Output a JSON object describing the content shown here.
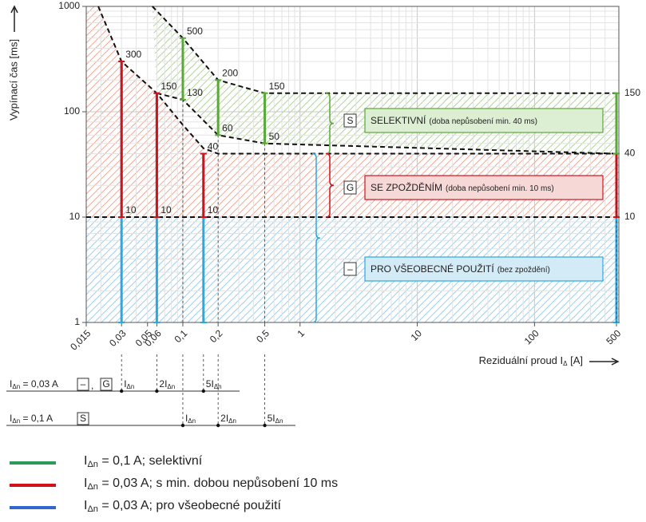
{
  "chart_data": {
    "type": "line",
    "ylabel": "Vypínací čas [ms]",
    "xlabel": {
      "text": "Reziduální proud I",
      "sub": "Δ",
      "unit": " [A]"
    },
    "xscale": "log",
    "yscale": "log",
    "xlim": [
      0.015,
      500
    ],
    "ylim": [
      1,
      1000
    ],
    "xticks": [
      {
        "value": 0.015,
        "label": "0,015"
      },
      {
        "value": 0.03,
        "label": "0,03"
      },
      {
        "value": 0.05,
        "label": "0,05"
      },
      {
        "value": 0.06,
        "label": "0,06"
      },
      {
        "value": 0.1,
        "label": "0,1"
      },
      {
        "value": 0.2,
        "label": "0,2"
      },
      {
        "value": 0.5,
        "label": "0,5"
      },
      1,
      10,
      100,
      500
    ],
    "yticks": [
      1,
      10,
      100,
      1000
    ],
    "grid": true,
    "boundaries": [
      {
        "x": [
          0.019,
          0.03,
          0.06,
          0.1,
          0.15,
          0.2,
          500
        ],
        "y": [
          1000,
          300,
          150,
          75,
          45,
          40,
          40
        ]
      },
      {
        "x": [
          0.055,
          0.1,
          0.2,
          0.5,
          500
        ],
        "y": [
          1000,
          500,
          200,
          150,
          150
        ]
      },
      {
        "x": [
          0.06,
          0.1,
          0.2,
          0.5,
          500
        ],
        "y": [
          150,
          130,
          60,
          50,
          40
        ]
      },
      {
        "x": [
          0.015,
          500
        ],
        "y": [
          10,
          10
        ]
      }
    ],
    "series": [
      {
        "name": {
          "symbol": "I",
          "sub": "Δn",
          "text": " = 0,1 A; selektivní"
        },
        "color": "#2e9a5a",
        "bar_color": "#5aa83a",
        "drop": true,
        "bars": [
          {
            "x": 0.1,
            "low": 130,
            "high": 500,
            "labels": [
              "high",
              "low"
            ]
          },
          {
            "x": 0.2,
            "low": 60,
            "high": 200,
            "labels": [
              "high",
              "low"
            ]
          },
          {
            "x": 0.5,
            "low": 50,
            "high": 150,
            "labels": [
              "high",
              "low"
            ]
          },
          {
            "x": 500,
            "low": 40,
            "high": 150,
            "labels": [
              "high",
              "low"
            ]
          }
        ]
      },
      {
        "name": {
          "symbol": "I",
          "sub": "Δn",
          "text": " = 0,03 A; s min. dobou nepůsobení 10 ms"
        },
        "color": "#d0121b",
        "bar_color": "#d0121b",
        "drop": false,
        "bars": [
          {
            "x": 0.03,
            "low": 10,
            "high": 300,
            "labels": [
              "high",
              "low"
            ]
          },
          {
            "x": 0.06,
            "low": 10,
            "high": 150,
            "labels": [
              "high",
              "low"
            ]
          },
          {
            "x": 0.15,
            "low": 10,
            "high": 40,
            "labels": [
              "high",
              "low"
            ]
          },
          {
            "x": 500,
            "low": 10,
            "high": 40,
            "labels": [
              "low"
            ]
          }
        ]
      },
      {
        "name": {
          "symbol": "I",
          "sub": "Δn",
          "text": " = 0,03 A; pro všeobecné použití"
        },
        "color": "#3366cc",
        "bar_color": "#2aa8e0",
        "drop": false,
        "bars": [
          {
            "x": 0.03,
            "low": 1,
            "high": 300,
            "labels": []
          },
          {
            "x": 0.06,
            "low": 1,
            "high": 150,
            "labels": []
          },
          {
            "x": 0.15,
            "low": 1,
            "high": 40,
            "labels": []
          },
          {
            "x": 500,
            "low": 1,
            "high": 40,
            "labels": []
          }
        ]
      }
    ],
    "categories_boxes": [
      {
        "code": "S",
        "label": "SELEKTIVNÍ",
        "note": "(doba nepůsobení min. 40 ms)",
        "range": [
          40,
          150
        ],
        "color": "#5aa83a",
        "fill": "#dcefd2"
      },
      {
        "code": "G",
        "label": "SE ZPOŽDĚNÍM",
        "note": "(doba nepůsobení min. 10 ms)",
        "range": [
          10,
          40
        ],
        "color": "#d0121b",
        "fill": "#f6d8d6"
      },
      {
        "code": "–",
        "label": "PRO VŠEOBECNÉ POUŽITÍ",
        "note": "(bez zpoždění)",
        "range": [
          1,
          40
        ],
        "color": "#2aa8e0",
        "fill": "#d2ebf7"
      }
    ],
    "rows": [
      {
        "symbol": "I",
        "sub": "Δn",
        "text": " = 0,03 A",
        "codes": [
          "–",
          "G"
        ],
        "separator": ",",
        "markers": [
          {
            "x": 0.03,
            "symbol": "I",
            "sub": "Δn"
          },
          {
            "x": 0.06,
            "prefix": "2",
            "symbol": "I",
            "sub": "Δn"
          },
          {
            "x": 0.15,
            "prefix": "5",
            "symbol": "I",
            "sub": "Δn"
          }
        ]
      },
      {
        "symbol": "I",
        "sub": "Δn",
        "text": " = 0,1 A",
        "codes": [
          "S"
        ],
        "markers": [
          {
            "x": 0.1,
            "symbol": "I",
            "sub": "Δn"
          },
          {
            "x": 0.2,
            "prefix": "2",
            "symbol": "I",
            "sub": "Δn"
          },
          {
            "x": 0.5,
            "prefix": "5",
            "symbol": "I",
            "sub": "Δn"
          }
        ]
      }
    ]
  }
}
